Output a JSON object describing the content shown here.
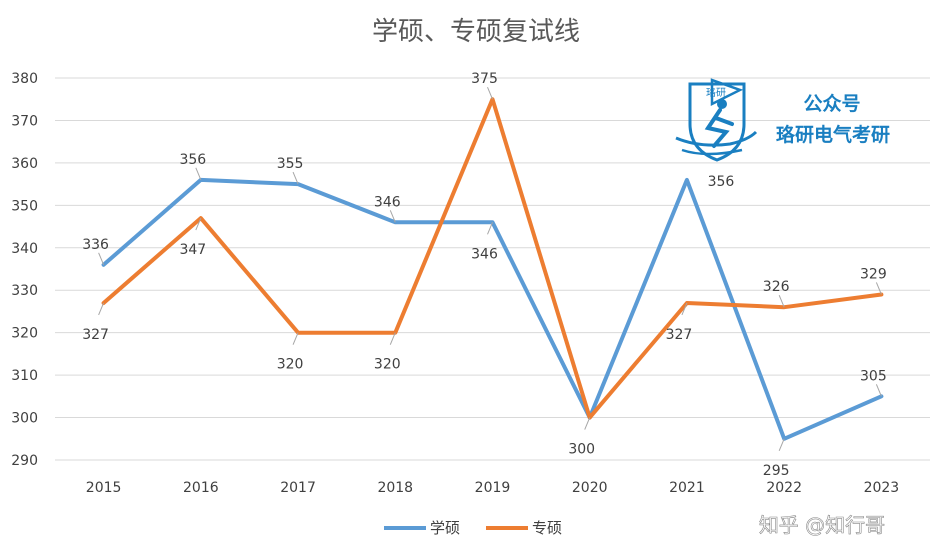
{
  "chart_data": {
    "type": "line",
    "title": "学硕、专硕复试线",
    "categories": [
      "2015",
      "2016",
      "2017",
      "2018",
      "2019",
      "2020",
      "2021",
      "2022",
      "2023"
    ],
    "series": [
      {
        "name": "学硕",
        "color": "#5b9bd5",
        "values": [
          336,
          356,
          355,
          346,
          346,
          300,
          356,
          295,
          305
        ]
      },
      {
        "name": "专硕",
        "color": "#ed7d31",
        "values": [
          327,
          347,
          320,
          320,
          375,
          300,
          327,
          326,
          329
        ]
      }
    ],
    "ylim": [
      290,
      380
    ],
    "yticks": [
      290,
      300,
      310,
      320,
      330,
      340,
      350,
      360,
      370,
      380
    ],
    "grid": true,
    "legend": "bottom"
  },
  "watermark": {
    "line1": "公众号",
    "line2": "珞研电气考研",
    "logo_text": "珞研",
    "logo_icon": "skier-logo-icon"
  },
  "footer_watermark": "知乎 @知行哥"
}
